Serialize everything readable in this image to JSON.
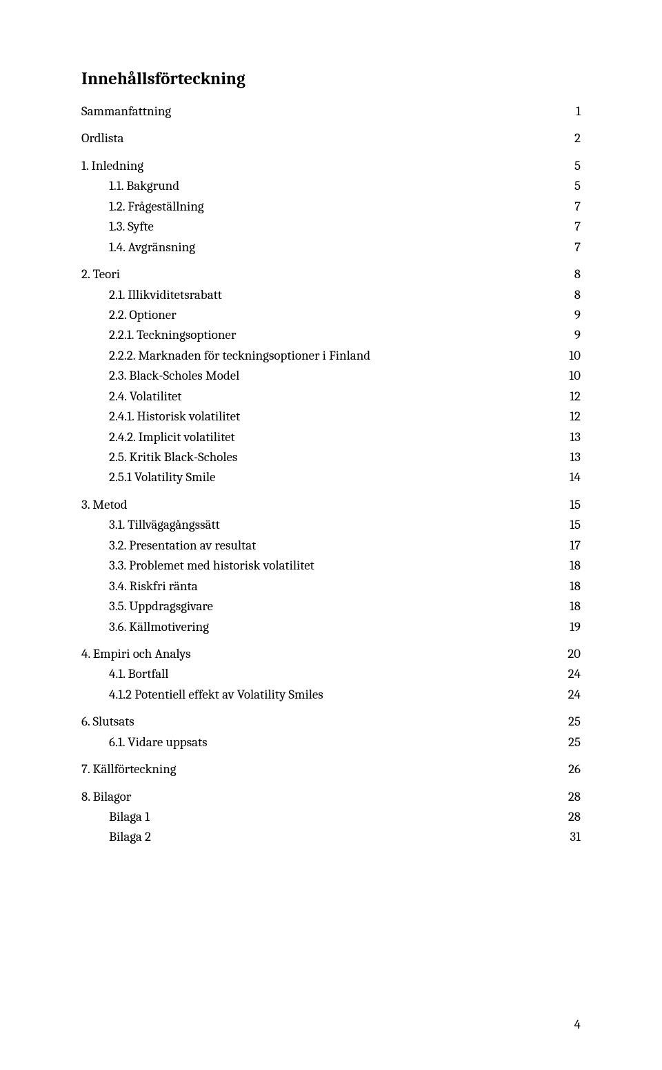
{
  "title": "Innehållsförteckning",
  "toc": [
    {
      "label": "Sammanfattning",
      "page": "1",
      "level": 0
    },
    {
      "label": "Ordlista",
      "page": "2",
      "level": 0
    },
    {
      "label": "1. Inledning",
      "page": "5",
      "level": 0
    },
    {
      "label": "1.1. Bakgrund",
      "page": "5",
      "level": 1
    },
    {
      "label": "1.2. Frågeställning",
      "page": "7",
      "level": 1
    },
    {
      "label": "1.3. Syfte",
      "page": "7",
      "level": 1
    },
    {
      "label": "1.4. Avgränsning",
      "page": "7",
      "level": 1
    },
    {
      "label": "2. Teori",
      "page": "8",
      "level": 0
    },
    {
      "label": "2.1. Illikviditetsrabatt",
      "page": "8",
      "level": 1
    },
    {
      "label": "2.2. Optioner",
      "page": "9",
      "level": 1
    },
    {
      "label": "2.2.1. Teckningsoptioner",
      "page": "9",
      "level": 2
    },
    {
      "label": "2.2.2. Marknaden för teckningsoptioner i Finland",
      "page": "10",
      "level": 2
    },
    {
      "label": "2.3. Black-Scholes Model",
      "page": "10",
      "level": 1
    },
    {
      "label": "2.4. Volatilitet",
      "page": "12",
      "level": 1
    },
    {
      "label": "2.4.1. Historisk volatilitet",
      "page": "12",
      "level": 2
    },
    {
      "label": "2.4.2. Implicit volatilitet",
      "page": "13",
      "level": 2
    },
    {
      "label": "2.5. Kritik Black-Scholes",
      "page": "13",
      "level": 1
    },
    {
      "label": "2.5.1 Volatility Smile",
      "page": "14",
      "level": 2
    },
    {
      "label": "3. Metod",
      "page": "15",
      "level": 0
    },
    {
      "label": "3.1. Tillvägagångssätt",
      "page": "15",
      "level": 1
    },
    {
      "label": "3.2. Presentation av resultat",
      "page": "17",
      "level": 1
    },
    {
      "label": "3.3. Problemet med historisk volatilitet",
      "page": "18",
      "level": 1
    },
    {
      "label": "3.4. Riskfri ränta",
      "page": "18",
      "level": 1
    },
    {
      "label": "3.5.  Uppdragsgivare",
      "page": "18",
      "level": 1
    },
    {
      "label": "3.6. Källmotivering",
      "page": "19",
      "level": 1
    },
    {
      "label": "4. Empiri och Analys",
      "page": "20",
      "level": 0
    },
    {
      "label": "4.1. Bortfall",
      "page": "24",
      "level": 1
    },
    {
      "label": "4.1.2 Potentiell effekt av Volatility Smiles",
      "page": "24",
      "level": 2
    },
    {
      "label": "6. Slutsats",
      "page": "25",
      "level": 0
    },
    {
      "label": "6.1. Vidare uppsats",
      "page": "25",
      "level": 1
    },
    {
      "label": "7. Källförteckning",
      "page": "26",
      "level": 0
    },
    {
      "label": "8. Bilagor",
      "page": "28",
      "level": 0,
      "gap": true
    },
    {
      "label": "Bilaga 1",
      "page": "28",
      "level": 1
    },
    {
      "label": "Bilaga 2",
      "page": "31",
      "level": 1
    }
  ],
  "footer_page": "4",
  "colors": {
    "background": "#ffffff",
    "text": "#000000"
  },
  "typography": {
    "title_fontsize": 25,
    "title_weight": "bold",
    "body_fontsize": 19,
    "font_family": "Cambria, Georgia, serif"
  }
}
